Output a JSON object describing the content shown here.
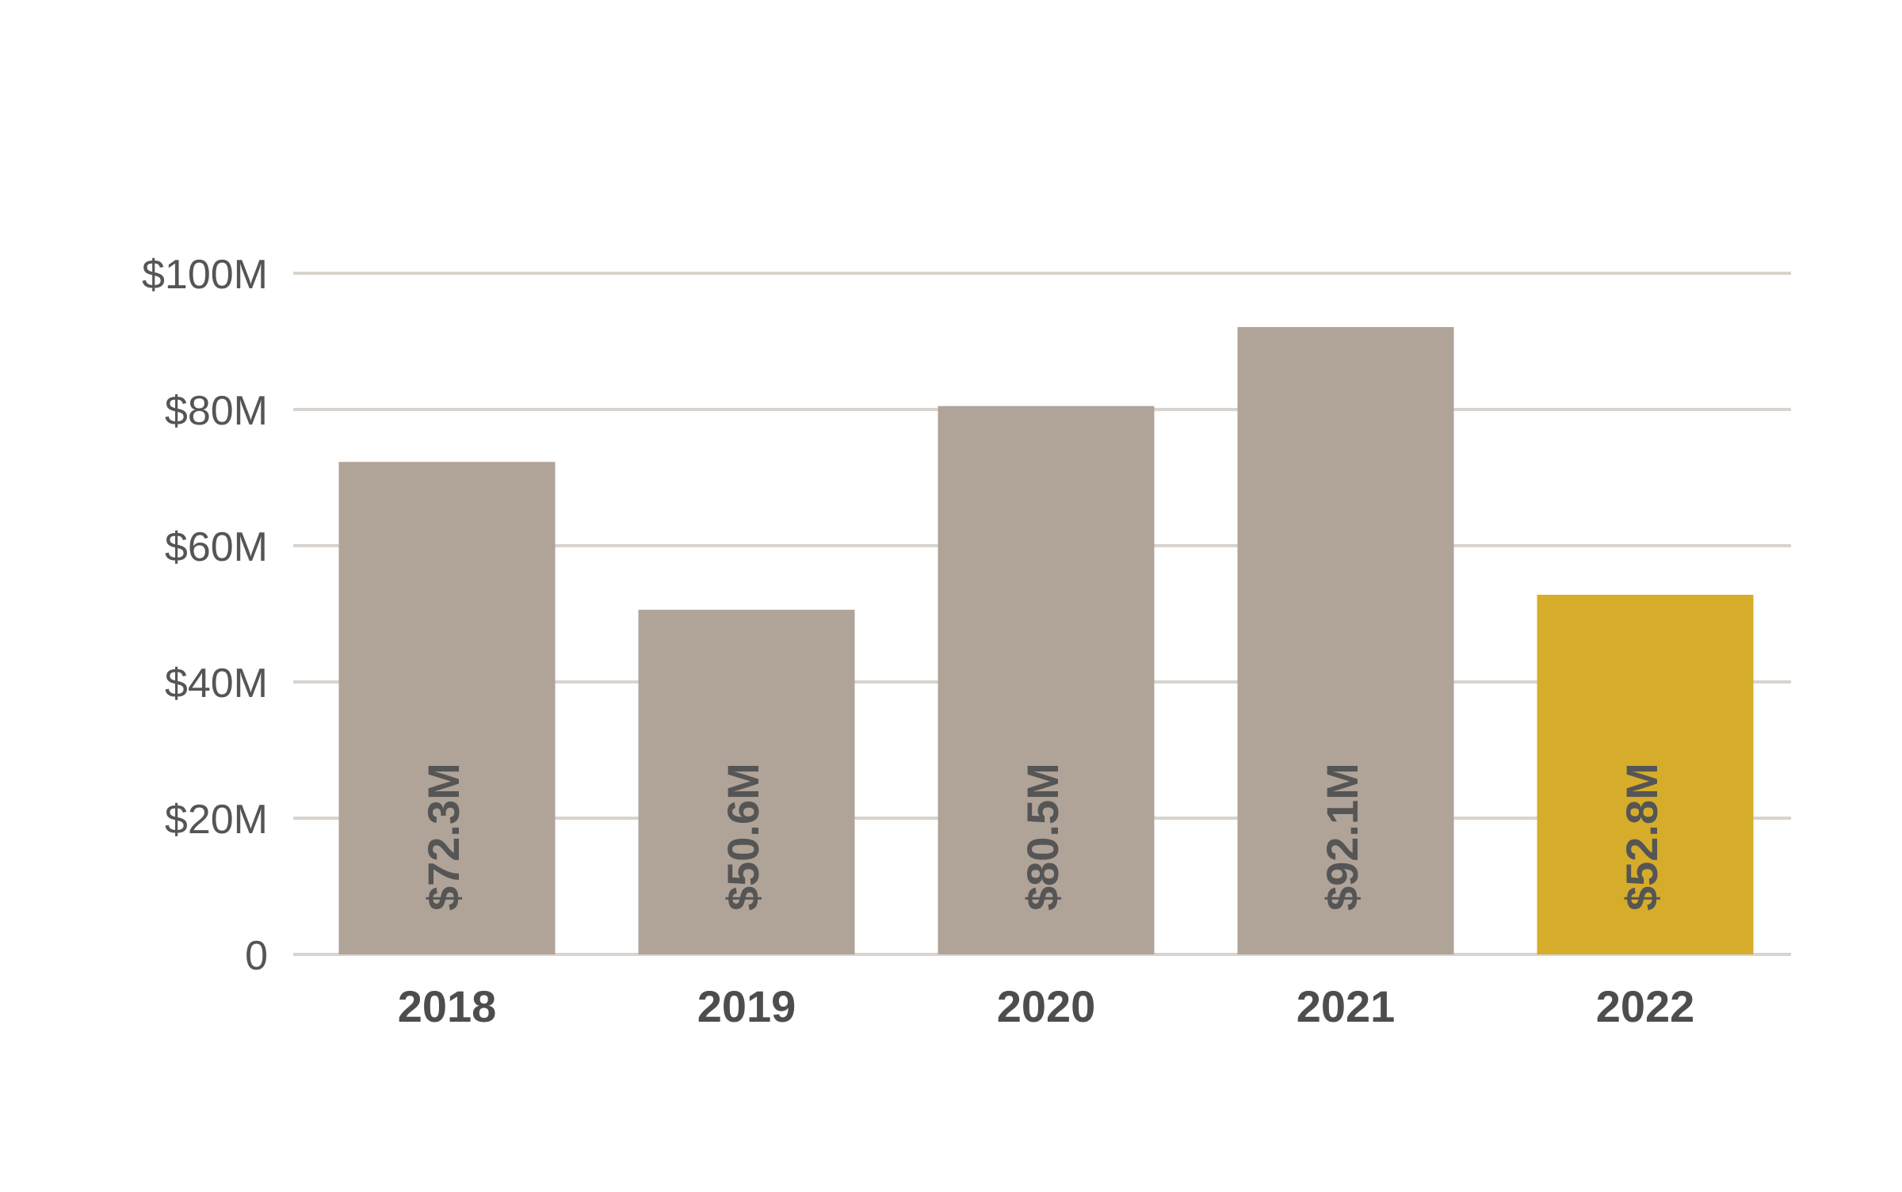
{
  "chart_data": {
    "type": "bar",
    "categories": [
      "2018",
      "2019",
      "2020",
      "2021",
      "2022"
    ],
    "values": [
      72.3,
      50.6,
      80.5,
      92.1,
      52.8
    ],
    "data_labels": [
      "$72.3M",
      "$50.6M",
      "$80.5M",
      "$92.1M",
      "$52.8M"
    ],
    "y_ticks": [
      0,
      20,
      40,
      60,
      80,
      100
    ],
    "y_tick_labels": [
      "0",
      "$20M",
      "$40M",
      "$60M",
      "$80M",
      "$100M"
    ],
    "ylim": [
      0,
      100
    ],
    "grid": true,
    "legend": "none",
    "colors": {
      "bar": "#b0a398",
      "highlight_bar": "#d6ad2b",
      "grid": "#d9d3cd",
      "text": "#555555"
    },
    "highlight_index": 4
  }
}
